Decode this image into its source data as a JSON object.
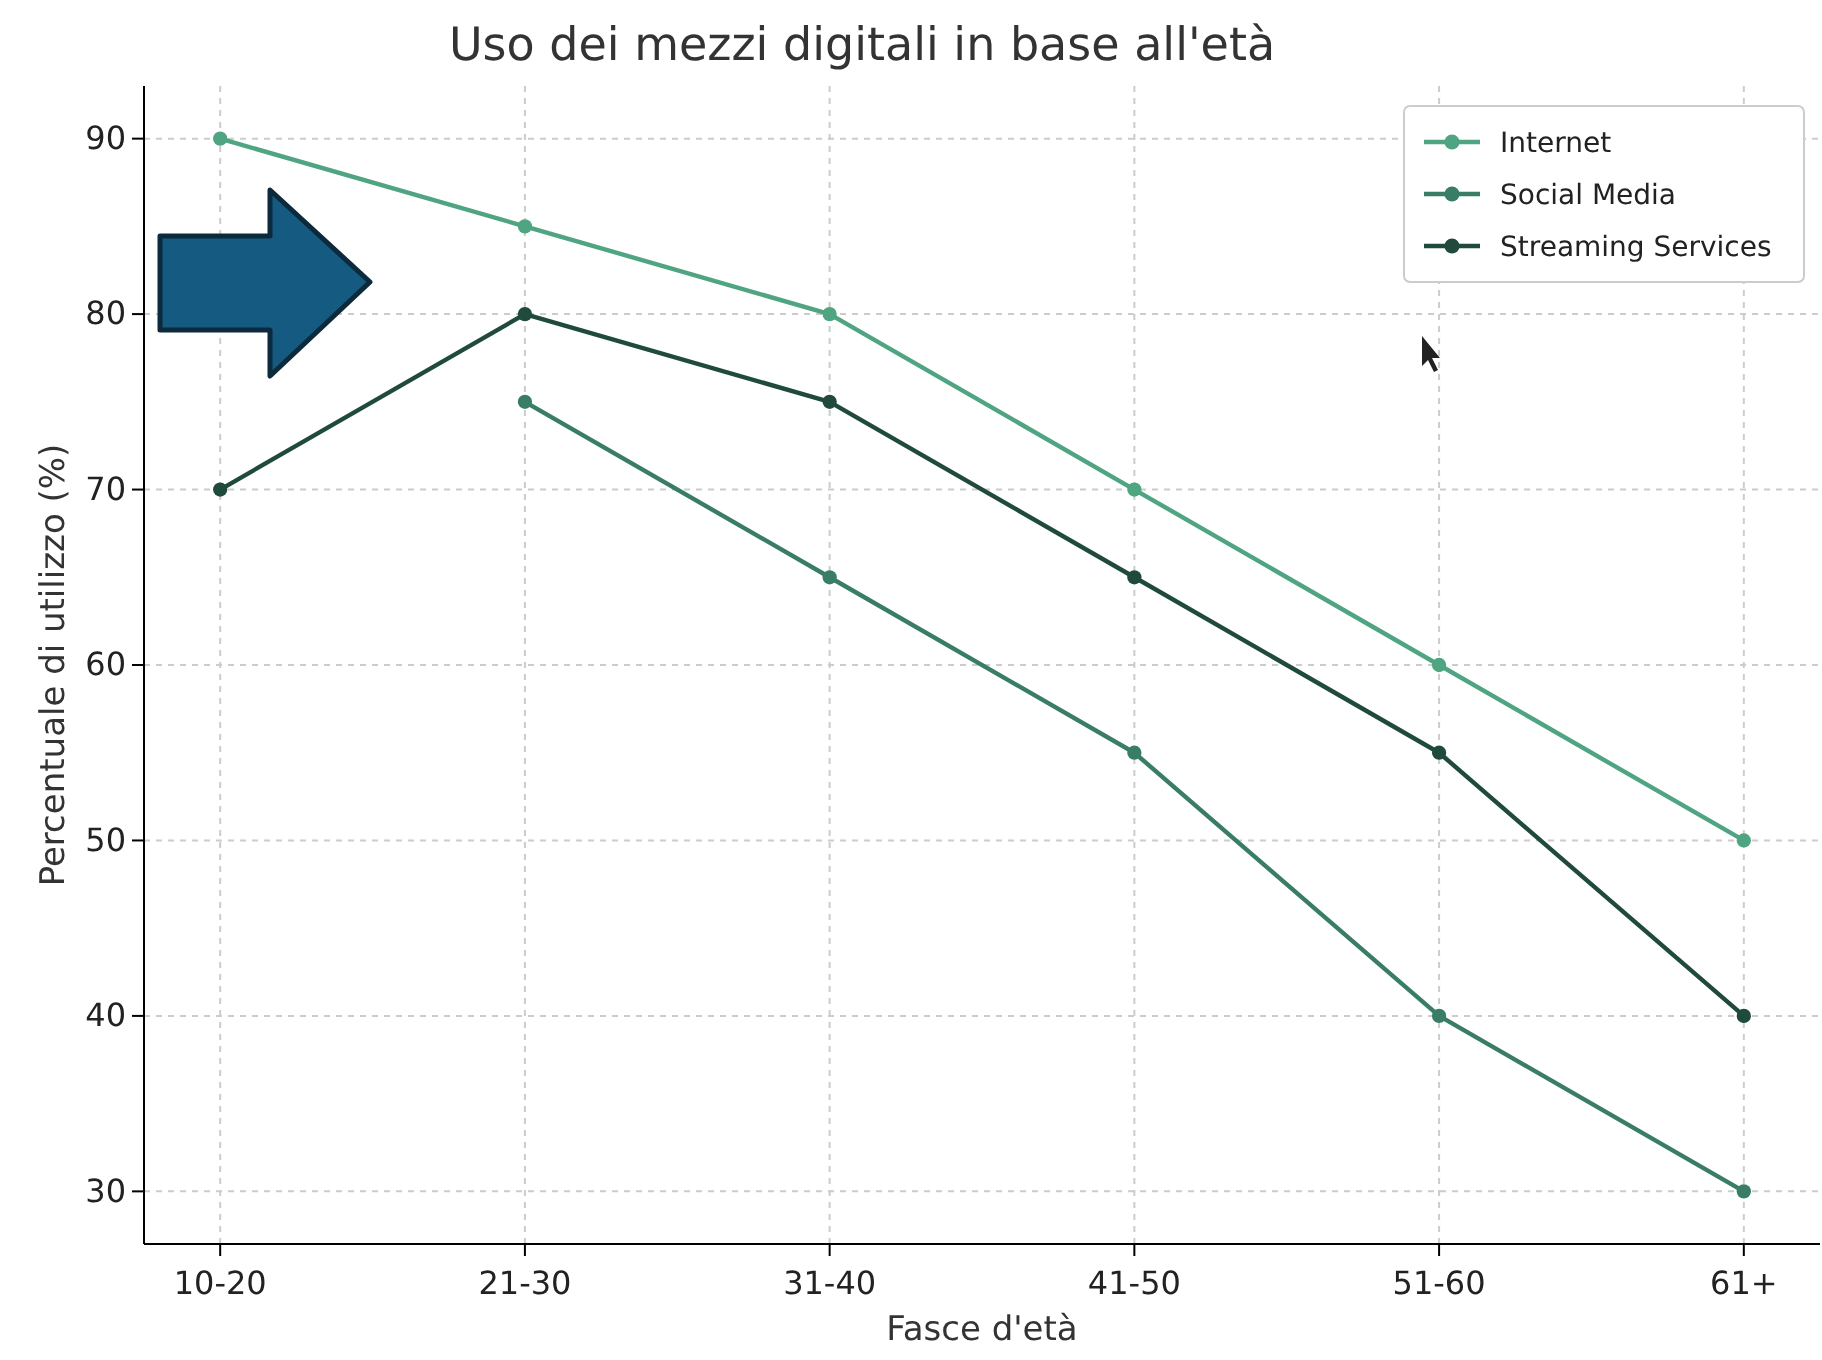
{
  "chart_data": {
    "type": "line",
    "title": "Uso dei mezzi digitali in base all'età",
    "xlabel": "Fasce d'età",
    "ylabel": "Percentuale di utilizzo (%)",
    "categories": [
      "10-20",
      "21-30",
      "31-40",
      "41-50",
      "51-60",
      "61+"
    ],
    "series": [
      {
        "name": "Internet",
        "color": "#4fa482",
        "values": [
          90,
          85,
          80,
          70,
          60,
          50
        ]
      },
      {
        "name": "Social Media",
        "color": "#3a7d66",
        "values": [
          null,
          75,
          65,
          55,
          40,
          30
        ]
      },
      {
        "name": "Streaming Services",
        "color": "#1f4a3c",
        "values": [
          70,
          80,
          75,
          65,
          55,
          40
        ]
      }
    ],
    "ylim": [
      27,
      93
    ],
    "yticks": [
      30,
      40,
      50,
      60,
      70,
      80,
      90
    ],
    "grid": true,
    "legend": "top right",
    "marker": "circle",
    "line_style": "solid"
  }
}
